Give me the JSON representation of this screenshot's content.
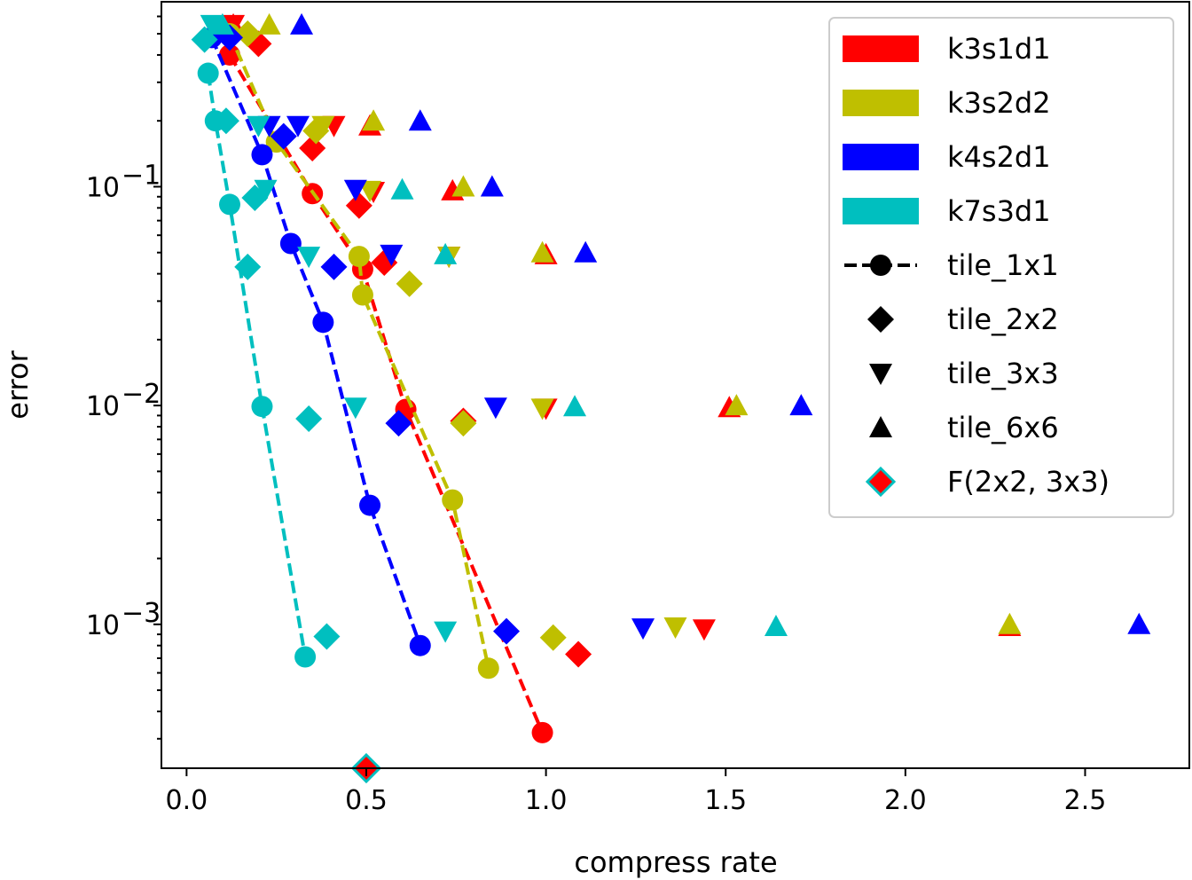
{
  "chart_data": {
    "type": "scatter",
    "title": "",
    "xlabel": "compress rate",
    "ylabel": "error",
    "xscale": "linear",
    "yscale": "log",
    "xlim": [
      -0.07,
      2.79
    ],
    "ylim": [
      0.00022,
      0.7
    ],
    "xticks": [
      0.0,
      0.5,
      1.0,
      1.5,
      2.0,
      2.5
    ],
    "xtick_labels": [
      "0.0",
      "0.5",
      "1.0",
      "1.5",
      "2.0",
      "2.5"
    ],
    "yticks": [
      0.1,
      0.01,
      0.001
    ],
    "ytick_labels": [
      {
        "base": "10",
        "exp": "−1"
      },
      {
        "base": "10",
        "exp": "−2"
      },
      {
        "base": "10",
        "exp": "−3"
      }
    ],
    "legend_position": "top-right",
    "legend": [
      {
        "label": "k3s1d1",
        "kind": "color",
        "color": "#ff0000"
      },
      {
        "label": "k3s2d2",
        "kind": "color",
        "color": "#bfbf00"
      },
      {
        "label": "k4s2d1",
        "kind": "color",
        "color": "#0000ff"
      },
      {
        "label": "k7s3d1",
        "kind": "color",
        "color": "#00bfbf"
      },
      {
        "label": "tile_1x1",
        "kind": "marker",
        "marker": "circle-line"
      },
      {
        "label": "tile_2x2",
        "kind": "marker",
        "marker": "diamond"
      },
      {
        "label": "tile_3x3",
        "kind": "marker",
        "marker": "triangle-down"
      },
      {
        "label": "tile_6x6",
        "kind": "marker",
        "marker": "triangle-up"
      },
      {
        "label": "F(2x2, 3x3)",
        "kind": "marker",
        "marker": "special-diamond"
      }
    ],
    "series": [
      {
        "name": "k3s1d1",
        "color": "#ff0000",
        "tile_1x1": {
          "x": [
            0.12,
            0.35,
            0.49,
            0.61,
            0.99
          ],
          "y": [
            0.4,
            0.093,
            0.042,
            0.0096,
            0.00032
          ]
        },
        "tile_2x2": {
          "x": [
            0.2,
            0.35,
            0.48,
            0.55,
            0.77,
            1.09
          ],
          "y": [
            0.45,
            0.15,
            0.082,
            0.045,
            0.0085,
            0.00073
          ]
        },
        "tile_3x3": {
          "x": [
            0.13,
            0.41,
            0.52,
            0.73,
            1.0,
            1.44
          ],
          "y": [
            0.55,
            0.19,
            0.095,
            0.048,
            0.0097,
            0.00095
          ]
        },
        "tile_6x6": {
          "x": [
            0.13,
            0.51,
            0.74,
            1.0,
            1.51,
            2.29
          ],
          "y": [
            0.55,
            0.19,
            0.096,
            0.049,
            0.0098,
            0.00098
          ]
        }
      },
      {
        "name": "k3s2d2",
        "color": "#bfbf00",
        "tile_1x1": {
          "x": [
            0.12,
            0.25,
            0.48,
            0.49,
            0.74,
            0.84
          ],
          "y": [
            0.5,
            0.16,
            0.048,
            0.032,
            0.0037,
            0.00063
          ]
        },
        "tile_2x2": {
          "x": [
            0.17,
            0.36,
            0.62,
            0.77,
            1.02
          ],
          "y": [
            0.5,
            0.18,
            0.036,
            0.0083,
            0.00087
          ]
        },
        "tile_3x3": {
          "x": [
            0.38,
            0.51,
            0.73,
            0.99,
            1.36
          ],
          "y": [
            0.19,
            0.096,
            0.048,
            0.0097,
            0.00097
          ]
        },
        "tile_6x6": {
          "x": [
            0.23,
            0.52,
            0.77,
            0.99,
            1.53,
            2.29
          ],
          "y": [
            0.55,
            0.2,
            0.1,
            0.05,
            0.01,
            0.001
          ]
        }
      },
      {
        "name": "k4s2d1",
        "color": "#0000ff",
        "tile_1x1": {
          "x": [
            0.07,
            0.21,
            0.29,
            0.38,
            0.51,
            0.65
          ],
          "y": [
            0.48,
            0.14,
            0.055,
            0.024,
            0.0035,
            0.0008
          ]
        },
        "tile_2x2": {
          "x": [
            0.12,
            0.27,
            0.41,
            0.59,
            0.89
          ],
          "y": [
            0.48,
            0.17,
            0.043,
            0.0083,
            0.00093
          ]
        },
        "tile_3x3": {
          "x": [
            0.23,
            0.31,
            0.47,
            0.57,
            0.86,
            1.27
          ],
          "y": [
            0.19,
            0.19,
            0.097,
            0.049,
            0.0098,
            0.00096
          ]
        },
        "tile_6x6": {
          "x": [
            0.32,
            0.65,
            0.85,
            1.11,
            1.71,
            2.65
          ],
          "y": [
            0.55,
            0.2,
            0.1,
            0.05,
            0.01,
            0.001
          ]
        }
      },
      {
        "name": "k7s3d1",
        "color": "#00bfbf",
        "tile_1x1": {
          "x": [
            0.06,
            0.08,
            0.12,
            0.21,
            0.33
          ],
          "y": [
            0.33,
            0.2,
            0.083,
            0.0099,
            0.00071
          ]
        },
        "tile_2x2": {
          "x": [
            0.05,
            0.11,
            0.19,
            0.17,
            0.34,
            0.39
          ],
          "y": [
            0.47,
            0.2,
            0.089,
            0.043,
            0.0087,
            0.00088
          ]
        },
        "tile_3x3": {
          "x": [
            0.07,
            0.2,
            0.22,
            0.34,
            0.47,
            0.72
          ],
          "y": [
            0.55,
            0.19,
            0.097,
            0.048,
            0.0098,
            0.00093
          ]
        },
        "tile_6x6": {
          "x": [
            0.1,
            0.6,
            0.72,
            1.08,
            1.64
          ],
          "y": [
            0.55,
            0.097,
            0.049,
            0.0099,
            0.00098
          ]
        }
      }
    ],
    "special_point": {
      "label": "F(2x2, 3x3)",
      "x": 0.5,
      "y": 0.00022,
      "fill": "#ff0000",
      "edge": "#00bfbf"
    }
  }
}
